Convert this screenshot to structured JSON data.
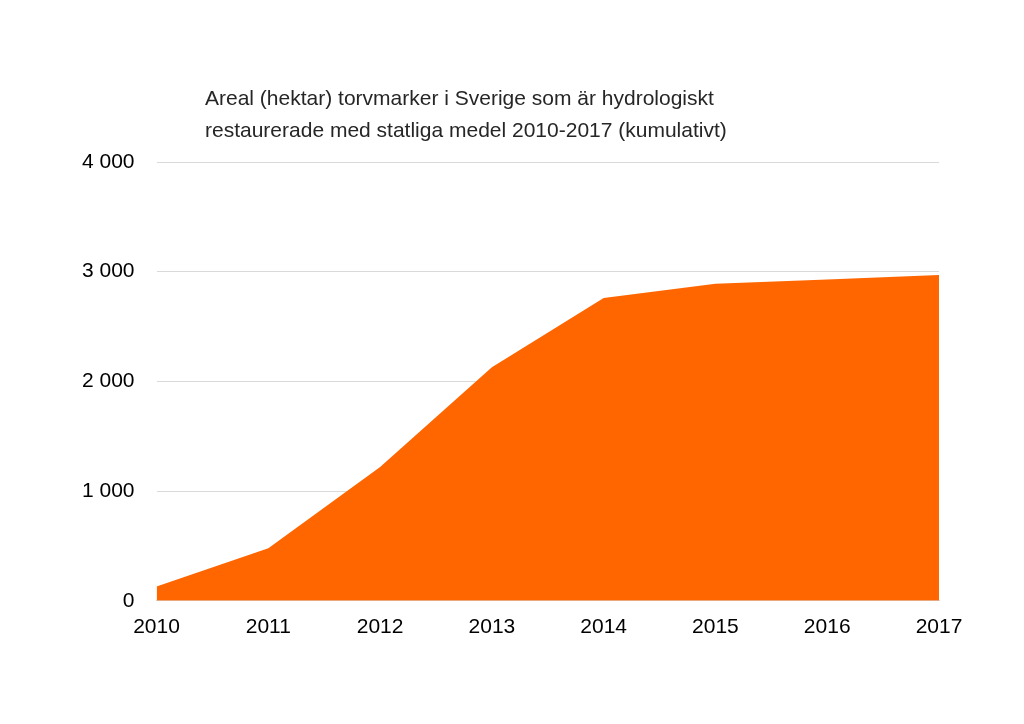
{
  "chart_data": {
    "type": "area",
    "title": "Areal (hektar) torvmarker i Sverige som är hydrologiskt\nrestaurerade med statliga medel 2010-2017 (kumulativt)",
    "categories": [
      "2010",
      "2011",
      "2012",
      "2013",
      "2014",
      "2015",
      "2016",
      "2017"
    ],
    "values": [
      130,
      480,
      1220,
      2130,
      2760,
      2890,
      2930,
      2970
    ],
    "color": "#ff6600",
    "ylim": [
      0,
      4000
    ],
    "yticks": [
      0,
      {
        "value": 1000,
        "label": "1 000"
      },
      {
        "value": 2000,
        "label": "2 000"
      },
      {
        "value": 3000,
        "label": "3 000"
      },
      {
        "value": 4000,
        "label": "4 000"
      }
    ],
    "grid": true
  }
}
